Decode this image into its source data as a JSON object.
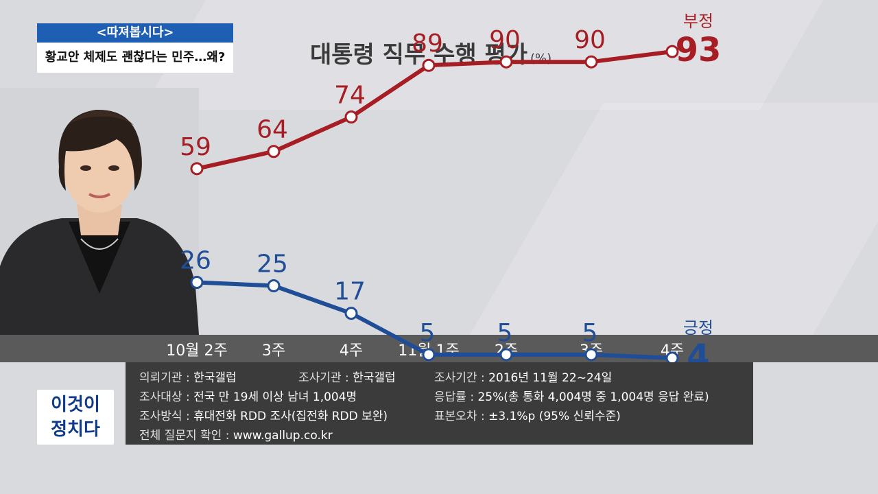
{
  "caption": {
    "tag": "<따져봅시다>",
    "headline": "황교안 체제도 괜찮다는 민주…왜?"
  },
  "badge": {
    "line1": "이것이",
    "line2": "정치다"
  },
  "colors": {
    "negative": "#a61e24",
    "positive": "#1f4e96",
    "blue_caption": "#1e5fb3"
  },
  "chart_data": {
    "type": "line",
    "title": "대통령 직무 수행 평가",
    "unit": "(%)",
    "categories": [
      "10월 2주",
      "3주",
      "4주",
      "11월 1주",
      "2주",
      "3주",
      "4주"
    ],
    "ylim": [
      0,
      100
    ],
    "series": [
      {
        "name": "부정",
        "values": [
          59,
          64,
          74,
          89,
          90,
          90,
          93
        ],
        "color": "#a61e24"
      },
      {
        "name": "긍정",
        "values": [
          26,
          25,
          17,
          5,
          5,
          5,
          4
        ],
        "color": "#1f4e96"
      }
    ]
  },
  "info": {
    "client_label": "의뢰기관 : ",
    "client_value": "한국갤럽",
    "org_label": "조사기관 : ",
    "org_value": "한국갤럽",
    "period_label": "조사기간 : ",
    "period_value": "2016년 11월 22~24일",
    "target_label": "조사대상 : ",
    "target_value": "전국 만 19세 이상 남녀 1,004명",
    "response_label": "응답률 : ",
    "response_value": "25%(총 통화 4,004명 중 1,004명 응답 완료)",
    "method_label": "조사방식 : ",
    "method_value": "휴대전화 RDD 조사(집전화 RDD 보완)",
    "error_label": "표본오차 : ",
    "error_value": " ±3.1%p (95% 신뢰수준)",
    "full_label": "전체 질문지 확인 : ",
    "full_value": "www.gallup.co.kr"
  }
}
